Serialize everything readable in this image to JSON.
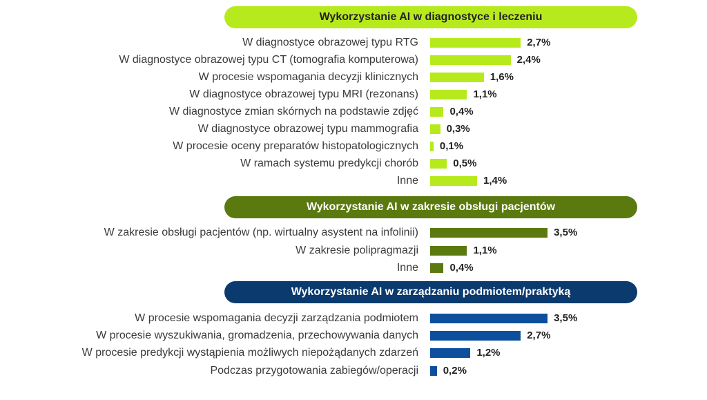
{
  "chart_data": {
    "type": "bar",
    "orientation": "horizontal",
    "value_format": "percent-comma",
    "groups": [
      {
        "title": "Wykorzystanie AI w diagnostyce i leczeniu",
        "color": "#b7ea1d",
        "header_color": "#b7ea1d",
        "header_text_color": "#222222",
        "categories": [
          "W diagnostyce obrazowej typu RTG",
          "W diagnostyce obrazowej typu CT (tomografia komputerowa)",
          "W procesie wspomagania decyzji klinicznych",
          "W diagnostyce obrazowej typu MRI (rezonans)",
          "W diagnostyce zmian skórnych na podstawie zdjęć",
          "W diagnostyce obrazowej typu mammografia",
          "W procesie oceny preparatów histopatologicznych",
          "W ramach systemu predykcji chorób",
          "Inne"
        ],
        "values": [
          2.7,
          2.4,
          1.6,
          1.1,
          0.4,
          0.3,
          0.1,
          0.5,
          1.4
        ],
        "labels": [
          "2,7%",
          "2,4%",
          "1,6%",
          "1,1%",
          "0,4%",
          "0,3%",
          "0,1%",
          "0,5%",
          "1,4%"
        ]
      },
      {
        "title": "Wykorzystanie AI w zakresie obsługi pacjentów",
        "color": "#5a7a10",
        "header_color": "#5a7a10",
        "header_text_color": "#ffffff",
        "categories": [
          "W zakresie obsługi pacjentów (np. wirtualny asystent na infolinii)",
          "W zakresie polipragmazji",
          "Inne"
        ],
        "values": [
          3.5,
          1.1,
          0.4
        ],
        "labels": [
          "3,5%",
          "1,1%",
          "0,4%"
        ]
      },
      {
        "title": "Wykorzystanie AI w zarządzaniu podmiotem/praktyką",
        "color": "#0d4f9c",
        "header_color": "#0b3a6e",
        "header_text_color": "#ffffff",
        "categories": [
          "W procesie wspomagania decyzji zarządzania podmiotem",
          "W procesie wyszukiwania, gromadzenia, przechowywania danych",
          "W procesie predykcji wystąpienia możliwych niepożądanych zdarzeń",
          "Podczas przygotowania zabiegów/operacji"
        ],
        "values": [
          3.5,
          2.7,
          1.2,
          0.2
        ],
        "labels": [
          "3,5%",
          "2,7%",
          "1,2%",
          "0,2%"
        ]
      }
    ]
  }
}
